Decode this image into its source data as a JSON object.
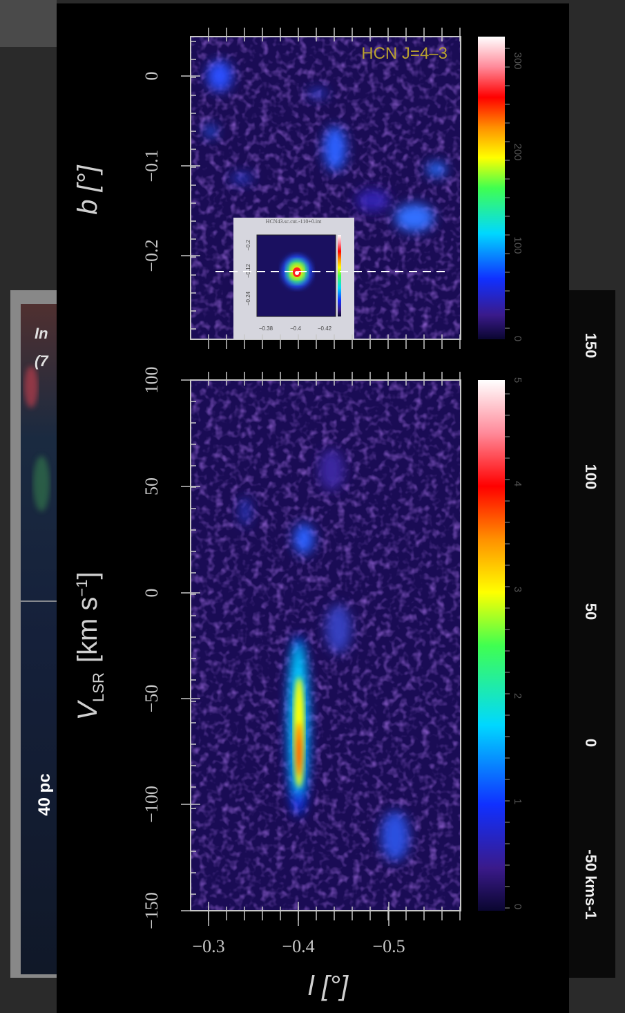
{
  "background_left": {
    "label_1": "In",
    "label_2": "(7",
    "scale": "40 pc"
  },
  "background_right": {
    "velocity_labels": [
      "150",
      "100",
      "50",
      "0",
      "-50 kms-1"
    ]
  },
  "figure": {
    "map": {
      "label": "HCN J=4–3",
      "y_label": "b [°]",
      "y_ticks": [
        "0",
        "−0.1",
        "−0.2"
      ],
      "colorbar_ticks": [
        "0",
        "100",
        "200",
        "300"
      ],
      "inset": {
        "title": "HCN43.sc.cut.-110+0.int",
        "x_ticks": [
          "−0.38",
          "−0.4",
          "−0.42"
        ],
        "y_ticks": [
          "−0.2",
          "−0.12",
          "−0.24"
        ]
      }
    },
    "pv": {
      "y_label": {
        "symbol": "V",
        "subscript": "LSR",
        "unit": "[km s",
        "exponent": "−1",
        "close": "]"
      },
      "y_ticks": [
        "100",
        "50",
        "0",
        "−50",
        "−100",
        "−150"
      ],
      "colorbar_ticks": [
        "0",
        "1",
        "2",
        "3",
        "4",
        "5"
      ]
    },
    "x_label": "l [°]",
    "x_ticks": [
      "−0.3",
      "−0.4",
      "−0.5"
    ]
  }
}
